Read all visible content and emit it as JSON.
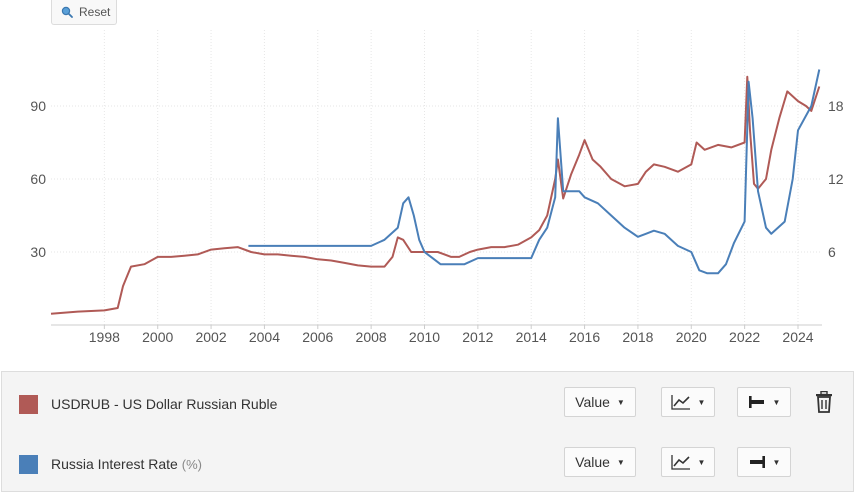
{
  "toolbar": {
    "reset_label": "Reset",
    "reset_icon": "magnifier-icon"
  },
  "chart_data": {
    "type": "line",
    "x_ticks": [
      "1998",
      "2000",
      "2002",
      "2004",
      "2006",
      "2008",
      "2010",
      "2012",
      "2014",
      "2016",
      "2018",
      "2020",
      "2022",
      "2024"
    ],
    "xlim": [
      1996,
      2024.9
    ],
    "y_left": {
      "ticks": [
        30,
        60,
        90
      ],
      "range": [
        0,
        120
      ]
    },
    "y_right": {
      "ticks": [
        6,
        12,
        18
      ],
      "range": [
        0,
        24
      ]
    },
    "grid": true,
    "legend_placement": "bottom",
    "series": [
      {
        "name": "USDRUB - US Dollar Russian Ruble",
        "axis": "left",
        "color": "#b05a56",
        "x": [
          1996,
          1997,
          1998,
          1998.5,
          1998.7,
          1999,
          1999.5,
          2000,
          2000.5,
          2001,
          2001.5,
          2002,
          2002.5,
          2003,
          2003.5,
          2004,
          2004.5,
          2005,
          2005.5,
          2006,
          2006.5,
          2007,
          2007.5,
          2008,
          2008.5,
          2008.8,
          2009,
          2009.2,
          2009.5,
          2010,
          2010.5,
          2011,
          2011.3,
          2011.7,
          2012,
          2012.5,
          2013,
          2013.5,
          2014,
          2014.3,
          2014.6,
          2014.9,
          2015,
          2015.2,
          2015.5,
          2015.8,
          2016,
          2016.3,
          2016.6,
          2017,
          2017.5,
          2018,
          2018.3,
          2018.6,
          2019,
          2019.5,
          2020,
          2020.2,
          2020.5,
          2021,
          2021.5,
          2022,
          2022.1,
          2022.2,
          2022.35,
          2022.5,
          2022.8,
          2023,
          2023.3,
          2023.6,
          2024,
          2024.3,
          2024.5,
          2024.8
        ],
        "y": [
          4.6,
          5.5,
          6,
          7,
          16,
          24,
          25,
          28,
          28,
          28.5,
          29,
          31,
          31.5,
          32,
          30,
          29,
          29,
          28.5,
          28,
          27,
          26.5,
          25.5,
          24.5,
          24,
          24,
          28,
          36,
          35,
          30,
          30,
          30,
          28,
          28,
          30,
          31,
          32,
          32,
          33,
          36,
          39,
          45,
          60,
          68,
          52,
          62,
          70,
          76,
          68,
          65,
          60,
          57,
          58,
          63,
          66,
          65,
          63,
          66,
          75,
          72,
          74,
          73,
          75,
          102,
          80,
          58,
          56,
          60,
          72,
          85,
          96,
          92,
          90,
          88,
          98
        ]
      },
      {
        "name": "Russia Interest Rate",
        "unit": "(%)",
        "axis": "right",
        "color": "#4a7fb8",
        "x": [
          2003.4,
          2008,
          2008.5,
          2009,
          2009.2,
          2009.4,
          2009.6,
          2009.8,
          2010,
          2010.3,
          2010.6,
          2011,
          2011.5,
          2012,
          2013,
          2014,
          2014.3,
          2014.6,
          2014.9,
          2015,
          2015.2,
          2015.5,
          2015.8,
          2016,
          2016.5,
          2017,
          2017.5,
          2018,
          2018.3,
          2018.6,
          2019,
          2019.5,
          2020,
          2020.3,
          2020.6,
          2021,
          2021.3,
          2021.6,
          2022,
          2022.15,
          2022.3,
          2022.5,
          2022.8,
          2023,
          2023.5,
          2023.8,
          2024,
          2024.5,
          2024.8
        ],
        "y": [
          6.5,
          6.5,
          7,
          8,
          10,
          10.5,
          9,
          7,
          6,
          5.5,
          5,
          5,
          5,
          5.5,
          5.5,
          5.5,
          7,
          8,
          10.5,
          17,
          11,
          11,
          11,
          10.5,
          10,
          9,
          8,
          7.25,
          7.5,
          7.75,
          7.5,
          6.5,
          6,
          4.5,
          4.25,
          4.25,
          5,
          6.75,
          8.5,
          20,
          17,
          11,
          8,
          7.5,
          8.5,
          12,
          16,
          18,
          21
        ]
      }
    ]
  },
  "legend": {
    "rows": [
      {
        "name": "USDRUB - US Dollar Russian Ruble",
        "color": "#b05a56",
        "value_label": "Value",
        "chart_icon": "line-chart-icon",
        "axis_icon": "axis-left-icon",
        "trash_icon": "trash-icon"
      },
      {
        "name": "Russia Interest Rate",
        "unit": "(%)",
        "color": "#4a7fb8",
        "value_label": "Value",
        "chart_icon": "line-chart-icon",
        "axis_icon": "axis-right-icon"
      }
    ]
  }
}
